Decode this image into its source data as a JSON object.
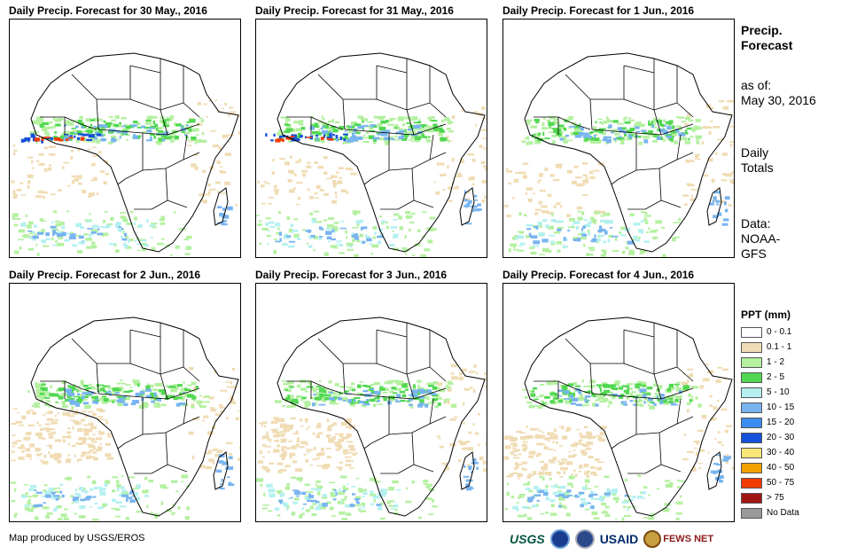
{
  "panels": [
    {
      "title": "Daily Precip. Forecast for 30 May., 2016"
    },
    {
      "title": "Daily Precip. Forecast for 31 May., 2016"
    },
    {
      "title": "Daily Precip. Forecast for 1 Jun., 2016"
    },
    {
      "title": "Daily Precip. Forecast for 2 Jun., 2016"
    },
    {
      "title": "Daily Precip. Forecast for 3 Jun., 2016"
    },
    {
      "title": "Daily Precip. Forecast for 4 Jun., 2016"
    }
  ],
  "side": {
    "title_line1": "Precip.",
    "title_line2": "Forecast",
    "asof_label": "as of:",
    "asof_date": "May 30, 2016",
    "totals_line1": "Daily",
    "totals_line2": "Totals",
    "source_line1": "Data:",
    "source_line2": "NOAA-",
    "source_line3": "GFS"
  },
  "legend": {
    "title": "PPT (mm)",
    "items": [
      {
        "label": "0 - 0.1",
        "color": "#ffffff"
      },
      {
        "label": "0.1 - 1",
        "color": "#f0dcb4"
      },
      {
        "label": "1 - 2",
        "color": "#b4f0a0"
      },
      {
        "label": "2 - 5",
        "color": "#50d850"
      },
      {
        "label": "5 - 10",
        "color": "#b4f0f0"
      },
      {
        "label": "10 - 15",
        "color": "#78b4f0"
      },
      {
        "label": "15 - 20",
        "color": "#3c8cf0"
      },
      {
        "label": "20 - 30",
        "color": "#1450d8"
      },
      {
        "label": "30 - 40",
        "color": "#fae678"
      },
      {
        "label": "40 - 50",
        "color": "#f0a000"
      },
      {
        "label": "50 - 75",
        "color": "#f03c00"
      },
      {
        "label": "> 75",
        "color": "#a01414"
      },
      {
        "label": "No Data",
        "color": "#9a9a9a"
      }
    ]
  },
  "credit": "Map produced by USGS/EROS",
  "logos": {
    "usgs": "USGS",
    "usaid": "USAID",
    "fews": "FEWS NET"
  },
  "colors": {
    "tan": "#f0dcb4",
    "lightgreen": "#b4f0a0",
    "green": "#50d850",
    "cyan": "#b4f0f0",
    "blue": "#78b4f0",
    "darkblue": "#1450d8",
    "red": "#f03c00"
  }
}
